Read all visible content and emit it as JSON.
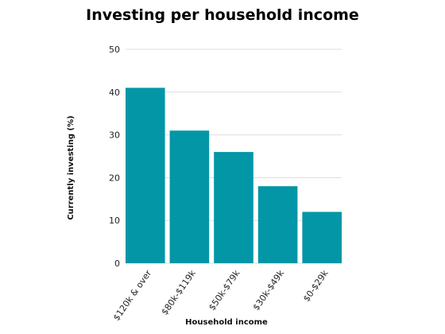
{
  "chart_data": {
    "type": "bar",
    "title": "Investing per household income",
    "xlabel": "Household income",
    "ylabel": "Currently investing (%)",
    "categories": [
      "$120k & over",
      "$80k-$119k",
      "$50k-$79k",
      "$30k-$49k",
      "$0-$29k"
    ],
    "values": [
      41,
      31,
      26,
      18,
      12
    ],
    "ylim": [
      0,
      50
    ],
    "yticks": [
      0,
      10,
      20,
      30,
      40,
      50
    ],
    "grid": true,
    "bar_color": "#0396A6",
    "grid_color": "#dddddd"
  }
}
